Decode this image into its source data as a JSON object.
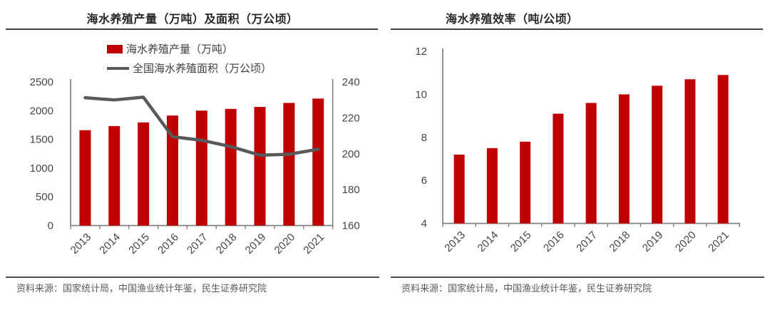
{
  "colors": {
    "bar": "#c00000",
    "line": "#595959",
    "axis": "#808080",
    "tick_label": "#454545",
    "title": "#262626",
    "source_text": "#595959"
  },
  "panels": [
    {
      "source": "资料来源：国家统计局，中国渔业统计年鉴，民生证券研究院"
    },
    {
      "source": "资料来源：国家统计局，中国渔业统计年鉴，民生证券研究院"
    }
  ],
  "chart_data": [
    {
      "type": "bar",
      "subtype": "combo-bar-line",
      "title": "海水养殖产量（万吨）及面积（万公顷）",
      "categories": [
        "2013",
        "2014",
        "2015",
        "2016",
        "2017",
        "2018",
        "2019",
        "2020",
        "2021"
      ],
      "series": [
        {
          "name": "海水养殖产量（万吨）",
          "type": "bar",
          "axis": "left",
          "values": [
            1660,
            1732,
            1796,
            1915,
            2001,
            2031,
            2065,
            2135,
            2211
          ]
        },
        {
          "name": "全国海水养殖面积（万公顷）",
          "type": "line",
          "axis": "right",
          "values": [
            231.2,
            230.0,
            231.5,
            209.5,
            207.5,
            204.0,
            199.2,
            199.7,
            202.5
          ]
        }
      ],
      "left_axis": {
        "min": 0,
        "max": 2500,
        "ticks": [
          0,
          500,
          1000,
          1500,
          2000,
          2500
        ]
      },
      "right_axis": {
        "min": 160,
        "max": 240,
        "ticks": [
          160,
          180,
          200,
          220,
          240
        ]
      },
      "legend_position": "top",
      "grid": false
    },
    {
      "type": "bar",
      "title": "海水养殖效率（吨/公顷）",
      "categories": [
        "2013",
        "2014",
        "2015",
        "2016",
        "2017",
        "2018",
        "2019",
        "2020",
        "2021"
      ],
      "values": [
        7.2,
        7.5,
        7.8,
        9.1,
        9.6,
        10.0,
        10.4,
        10.7,
        10.9
      ],
      "ylim": [
        4,
        12
      ],
      "yticks": [
        4,
        6,
        8,
        10,
        12
      ],
      "xlabel": "",
      "ylabel": "",
      "legend_position": "none",
      "grid": false
    }
  ]
}
